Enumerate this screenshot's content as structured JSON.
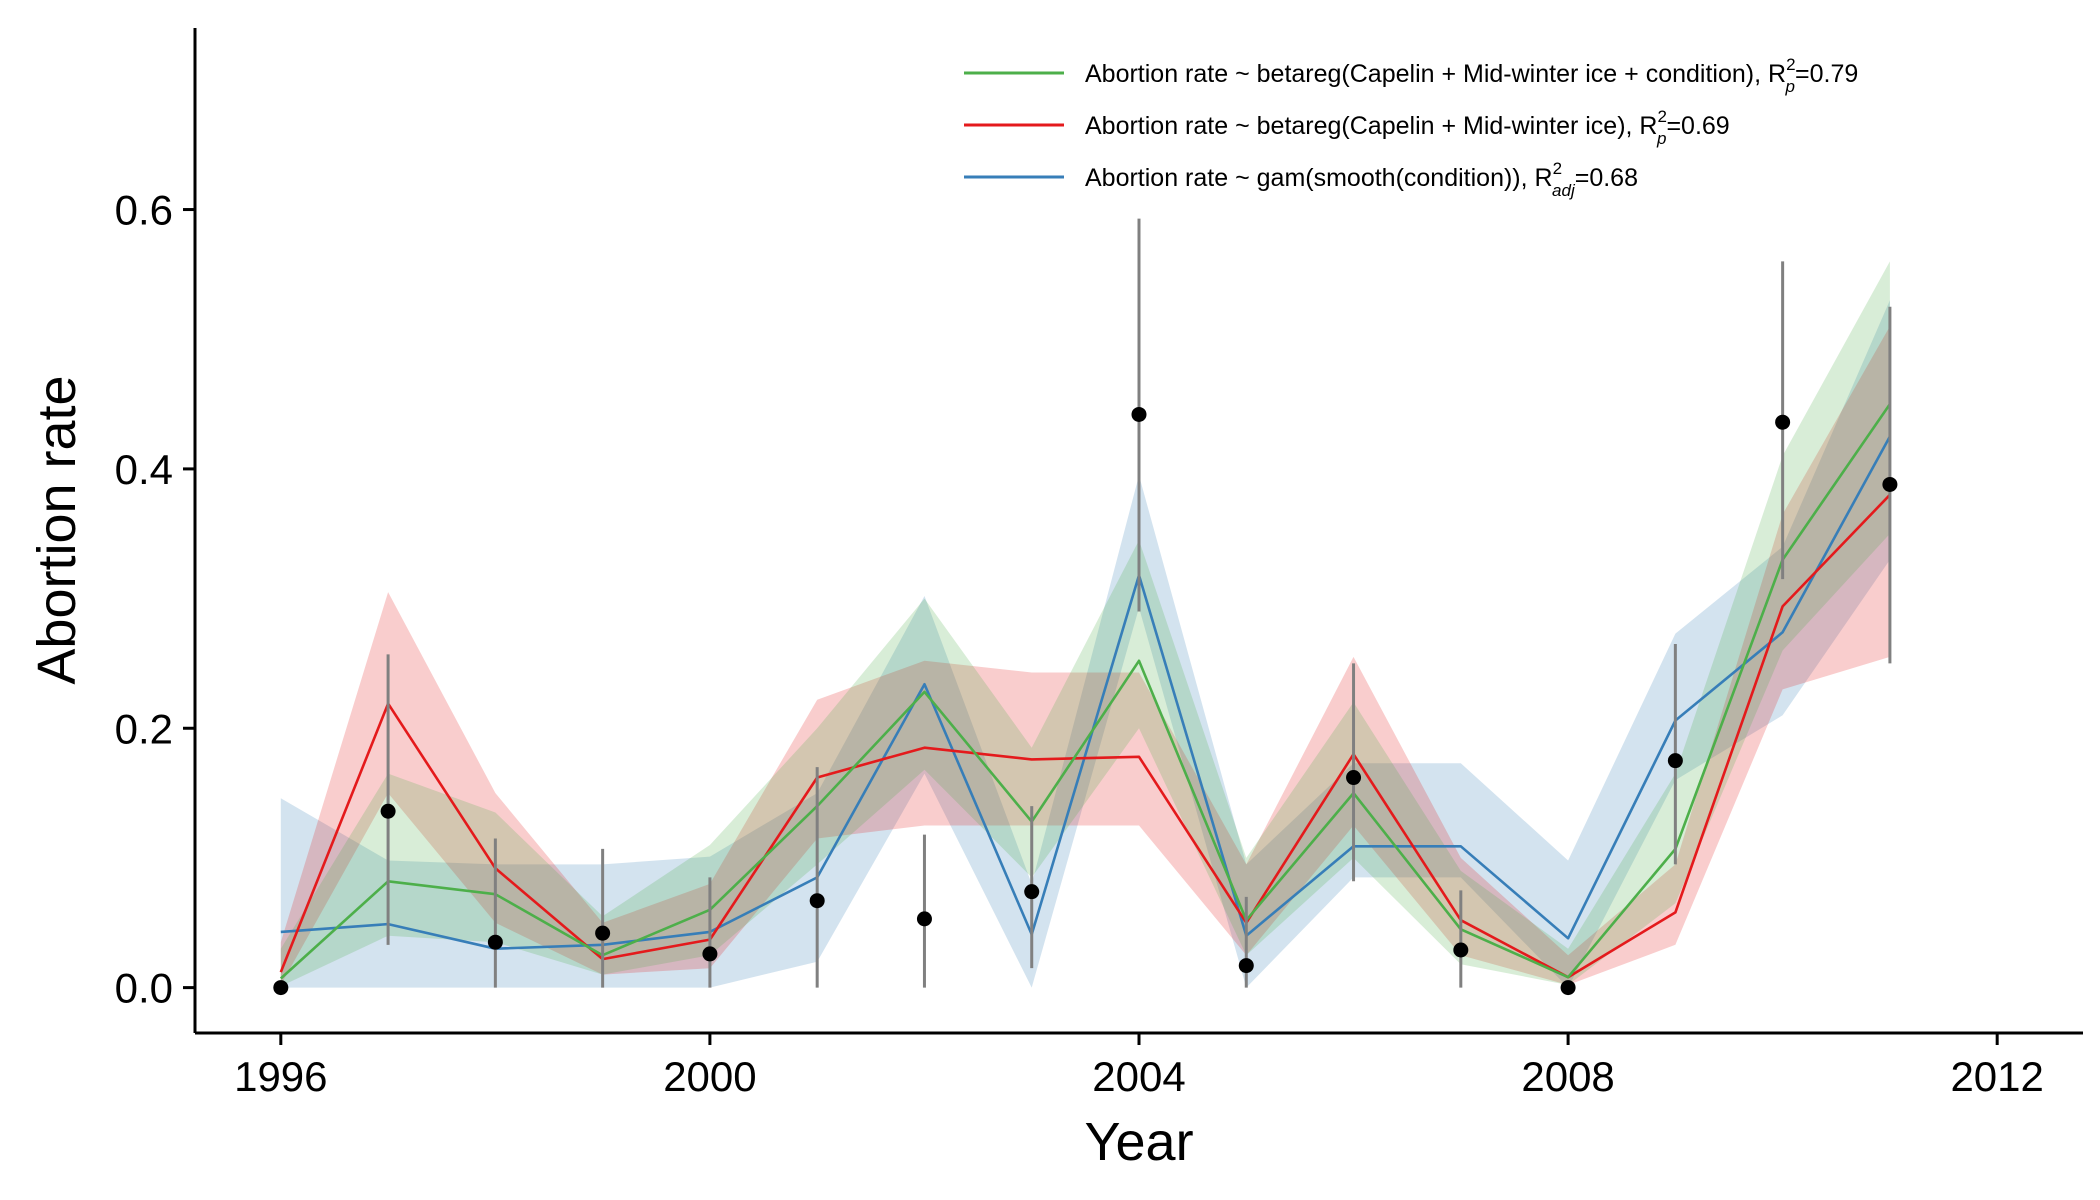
{
  "chart_data": {
    "type": "line",
    "xlabel": "Year",
    "ylabel": "Abortion rate",
    "xlim": [
      1995.2,
      2012.8
    ],
    "ylim": [
      -0.035,
      0.74
    ],
    "x_ticks": [
      1996,
      2000,
      2004,
      2008,
      2012
    ],
    "x_tick_labels": [
      "1996",
      "2000",
      "2004",
      "2008",
      "2012"
    ],
    "y_ticks": [
      0.0,
      0.2,
      0.4,
      0.6
    ],
    "y_tick_labels": [
      "0.0",
      "0.2",
      "0.4",
      "0.6"
    ],
    "grid": false,
    "legend_position": "top-right",
    "x": [
      1996,
      1997,
      1998,
      1999,
      2000,
      2001,
      2002,
      2003,
      2004,
      2005,
      2006,
      2007,
      2008,
      2009,
      2010,
      2011
    ],
    "series": [
      {
        "key": "condition_gam",
        "legend_main": "Abortion rate ~ gam(smooth(condition)), R",
        "legend_sup": "2",
        "legend_sub": "adj",
        "legend_value": "=0.68",
        "color": "#377eb8",
        "values": [
          0.043,
          0.049,
          0.03,
          0.033,
          0.043,
          0.085,
          0.234,
          0.041,
          0.318,
          0.04,
          0.109,
          0.109,
          0.038,
          0.206,
          0.274,
          0.425
        ],
        "lower": [
          0.0,
          0.0,
          0.0,
          0.0,
          0.0,
          0.02,
          0.165,
          0.0,
          0.293,
          0.0,
          0.085,
          0.085,
          0.0,
          0.16,
          0.21,
          0.33
        ],
        "upper": [
          0.146,
          0.098,
          0.095,
          0.095,
          0.101,
          0.15,
          0.302,
          0.08,
          0.395,
          0.095,
          0.173,
          0.173,
          0.098,
          0.273,
          0.34,
          0.53
        ]
      },
      {
        "key": "capelin_ice",
        "legend_main": "Abortion rate ~ betareg(Capelin + Mid-winter ice), R",
        "legend_sup": "2",
        "legend_sub": "p",
        "legend_value": "=0.69",
        "color": "#e41a1c",
        "values": [
          0.012,
          0.219,
          0.092,
          0.022,
          0.037,
          0.162,
          0.185,
          0.176,
          0.178,
          0.05,
          0.18,
          0.052,
          0.008,
          0.058,
          0.294,
          0.38
        ],
        "lower": [
          0.002,
          0.15,
          0.05,
          0.01,
          0.015,
          0.115,
          0.125,
          0.125,
          0.125,
          0.025,
          0.125,
          0.025,
          0.002,
          0.033,
          0.23,
          0.255
        ],
        "upper": [
          0.035,
          0.305,
          0.15,
          0.05,
          0.08,
          0.222,
          0.252,
          0.243,
          0.243,
          0.095,
          0.255,
          0.1,
          0.025,
          0.095,
          0.365,
          0.51
        ]
      },
      {
        "key": "capelin_ice_condition",
        "legend_main": "Abortion rate ~ betareg(Capelin + Mid-winter ice + condition), R",
        "legend_sup": "2",
        "legend_sub": "p",
        "legend_value": "=0.79",
        "color": "#4daf4a",
        "values": [
          0.007,
          0.082,
          0.072,
          0.025,
          0.06,
          0.14,
          0.228,
          0.128,
          0.252,
          0.052,
          0.15,
          0.045,
          0.008,
          0.107,
          0.33,
          0.45
        ],
        "lower": [
          0.001,
          0.04,
          0.035,
          0.01,
          0.025,
          0.095,
          0.168,
          0.085,
          0.2,
          0.025,
          0.1,
          0.018,
          0.002,
          0.065,
          0.26,
          0.35
        ],
        "upper": [
          0.03,
          0.165,
          0.135,
          0.055,
          0.11,
          0.2,
          0.3,
          0.185,
          0.345,
          0.1,
          0.22,
          0.09,
          0.03,
          0.165,
          0.41,
          0.56
        ]
      }
    ],
    "observed": {
      "color": "#000000",
      "whisker_color": "#808080",
      "values": [
        0.0,
        0.136,
        0.035,
        0.042,
        0.026,
        0.067,
        0.053,
        0.074,
        0.442,
        0.017,
        0.162,
        0.029,
        0.0,
        0.175,
        0.436,
        0.388
      ],
      "lower": [
        0.0,
        0.033,
        0.0,
        0.0,
        0.0,
        0.0,
        0.0,
        0.015,
        0.29,
        0.0,
        0.082,
        0.0,
        0.0,
        0.095,
        0.315,
        0.25
      ],
      "upper": [
        0.0,
        0.257,
        0.115,
        0.107,
        0.085,
        0.17,
        0.118,
        0.14,
        0.593,
        0.07,
        0.25,
        0.075,
        0.0,
        0.265,
        0.56,
        0.525
      ]
    },
    "legend_order": [
      "capelin_ice_condition",
      "capelin_ice",
      "condition_gam"
    ]
  }
}
